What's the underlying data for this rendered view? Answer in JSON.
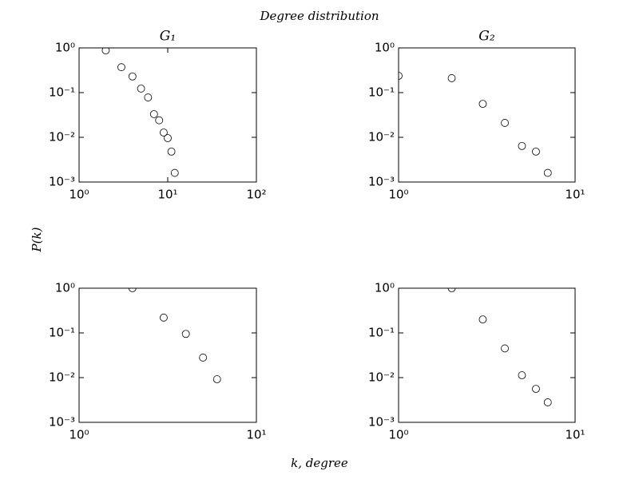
{
  "figure": {
    "title": "Degree distribution",
    "x_label": "k, degree",
    "y_label": "P(k)"
  },
  "chart_data": [
    {
      "type": "scatter",
      "title": "G₁",
      "log_x": true,
      "log_y": true,
      "marker_color": "#000000",
      "x": [
        2,
        3,
        4,
        5,
        6,
        7,
        8,
        9,
        10,
        11,
        12
      ],
      "y": [
        0.88,
        0.37,
        0.23,
        0.123,
        0.078,
        0.033,
        0.024,
        0.0128,
        0.0096,
        0.0048,
        0.0016
      ],
      "xlim": [
        1,
        100
      ],
      "ylim": [
        0.001,
        1
      ],
      "xticks": [
        {
          "value": 1,
          "label": "10⁰"
        },
        {
          "value": 10,
          "label": "10¹"
        },
        {
          "value": 100,
          "label": "10²"
        }
      ],
      "yticks": [
        {
          "value": 0.001,
          "label": "10⁻³"
        },
        {
          "value": 0.01,
          "label": "10⁻²"
        },
        {
          "value": 0.1,
          "label": "10⁻¹"
        },
        {
          "value": 1,
          "label": "10⁰"
        }
      ]
    },
    {
      "type": "scatter",
      "title": "G₂",
      "log_x": true,
      "log_y": true,
      "marker_color": "#000000",
      "x": [
        1,
        2,
        3,
        4,
        5,
        6,
        7
      ],
      "y": [
        0.237,
        0.21,
        0.056,
        0.021,
        0.0064,
        0.0048,
        0.0016
      ],
      "xlim": [
        1,
        10
      ],
      "ylim": [
        0.001,
        1
      ],
      "xticks": [
        {
          "value": 1,
          "label": "10⁰"
        },
        {
          "value": 10,
          "label": "10¹"
        }
      ],
      "yticks": [
        {
          "value": 0.001,
          "label": "10⁻³"
        },
        {
          "value": 0.01,
          "label": "10⁻²"
        },
        {
          "value": 0.1,
          "label": "10⁻¹"
        },
        {
          "value": 1,
          "label": "10⁰"
        }
      ]
    },
    {
      "type": "scatter",
      "log_x": true,
      "log_y": true,
      "marker_color": "#000000",
      "x": [
        2,
        3,
        4,
        5,
        6
      ],
      "y": [
        1,
        0.22,
        0.095,
        0.028,
        0.0092
      ],
      "xlim": [
        1,
        10
      ],
      "ylim": [
        0.001,
        1
      ],
      "xticks": [
        {
          "value": 1,
          "label": "10⁰"
        },
        {
          "value": 10,
          "label": "10¹"
        }
      ],
      "yticks": [
        {
          "value": 0.001,
          "label": "10⁻³"
        },
        {
          "value": 0.01,
          "label": "10⁻²"
        },
        {
          "value": 0.1,
          "label": "10⁻¹"
        },
        {
          "value": 1,
          "label": "10⁰"
        }
      ]
    },
    {
      "type": "scatter",
      "log_x": true,
      "log_y": true,
      "marker_color": "#000000",
      "x": [
        2,
        3,
        4,
        5,
        6,
        7
      ],
      "y": [
        1,
        0.2,
        0.045,
        0.0113,
        0.0056,
        0.0028
      ],
      "xlim": [
        1,
        10
      ],
      "ylim": [
        0.001,
        1
      ],
      "xticks": [
        {
          "value": 1,
          "label": "10⁰"
        },
        {
          "value": 10,
          "label": "10¹"
        }
      ],
      "yticks": [
        {
          "value": 0.001,
          "label": "10⁻³"
        },
        {
          "value": 0.01,
          "label": "10⁻²"
        },
        {
          "value": 0.1,
          "label": "10⁻¹"
        },
        {
          "value": 1,
          "label": "10⁰"
        }
      ]
    }
  ]
}
